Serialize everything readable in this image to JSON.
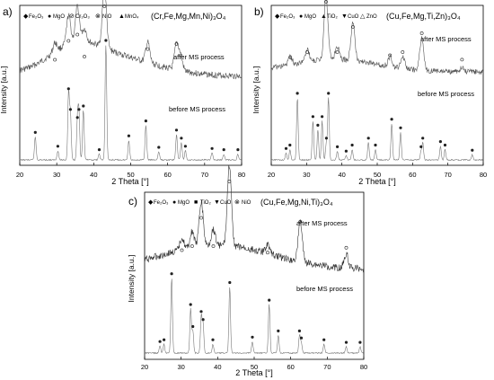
{
  "panels": [
    {
      "label": "a)",
      "compound": "(Cr,Fe,Mg,Mn,Ni)₃O₄",
      "legend": [
        {
          "symbol": "diamond",
          "text": "Fe₂O₃"
        },
        {
          "symbol": "circle",
          "text": "MgO"
        },
        {
          "symbol": "circle-slash",
          "text": "Cr₂O₃"
        },
        {
          "symbol": "circle-x",
          "text": "NiO"
        },
        {
          "symbol": "triangle",
          "text": "MnO₄"
        }
      ],
      "after_label": "after MS process",
      "before_label": "before MS process",
      "xlabel": "2 Theta [°]",
      "ylabel": "Intensity [a.u.]",
      "ticks": [
        "20",
        "30",
        "40",
        "50",
        "60",
        "70",
        "80"
      ]
    },
    {
      "label": "b)",
      "compound": "(Cu,Fe,Mg,Ti,Zn)₃O₄",
      "legend": [
        {
          "symbol": "diamond",
          "text": "Fe₂O₃"
        },
        {
          "symbol": "circle",
          "text": "MgO"
        },
        {
          "symbol": "triangle",
          "text": "TiO₂"
        },
        {
          "symbol": "tri-down",
          "text": "CuO"
        },
        {
          "symbol": "tri-outline",
          "text": "ZnO"
        }
      ],
      "after_label": "after MS process",
      "before_label": "before MS process",
      "xlabel": "2 Theta [°]",
      "ylabel": "Intensity [a.u.]",
      "ticks": [
        "20",
        "30",
        "40",
        "50",
        "60",
        "70",
        "80"
      ]
    },
    {
      "label": "c)",
      "compound": "(Cu,Fe,Mg,Ni,Ti)₃O₄",
      "legend": [
        {
          "symbol": "diamond",
          "text": "Fe₂O₃"
        },
        {
          "symbol": "circle",
          "text": "MgO"
        },
        {
          "symbol": "square",
          "text": "TiO₂"
        },
        {
          "symbol": "tri-down",
          "text": "CuO"
        },
        {
          "symbol": "circle-x",
          "text": "NiO"
        }
      ],
      "after_label": "after MS process",
      "before_label": "before MS process",
      "xlabel": "2 Theta [°]",
      "ylabel": "Intensity [a.u.]",
      "ticks": [
        "20",
        "30",
        "40",
        "50",
        "60",
        "70",
        "80"
      ]
    }
  ],
  "chart_data": [
    {
      "type": "line",
      "title": "(Cr,Fe,Mg,Mn,Ni)₃O₄",
      "xlabel": "2 Theta [°]",
      "ylabel": "Intensity [a.u.]",
      "xlim": [
        20,
        80
      ],
      "series": [
        {
          "name": "after MS process",
          "peaks": [
            [
              29.5,
              0.15
            ],
            [
              33.2,
              0.45
            ],
            [
              35.6,
              0.55
            ],
            [
              37.5,
              0.2
            ],
            [
              42.9,
              1.0
            ],
            [
              54.6,
              0.32
            ],
            [
              62.4,
              0.4
            ],
            [
              63.5,
              0.22
            ]
          ]
        },
        {
          "name": "before MS process",
          "peaks": [
            [
              24.2,
              0.2
            ],
            [
              30.3,
              0.08
            ],
            [
              33.2,
              0.58
            ],
            [
              33.7,
              0.4
            ],
            [
              35.6,
              0.33
            ],
            [
              36.0,
              0.4
            ],
            [
              37.2,
              0.43
            ],
            [
              41.5,
              0.05
            ],
            [
              43.3,
              1.0
            ],
            [
              49.5,
              0.17
            ],
            [
              54.1,
              0.3
            ],
            [
              57.6,
              0.07
            ],
            [
              62.4,
              0.22
            ],
            [
              63.7,
              0.15
            ],
            [
              64.8,
              0.08
            ],
            [
              72.0,
              0.06
            ],
            [
              75.2,
              0.05
            ],
            [
              79.0,
              0.05
            ]
          ]
        }
      ]
    },
    {
      "type": "line",
      "title": "(Cu,Fe,Mg,Ti,Zn)₃O₄",
      "xlabel": "2 Theta [°]",
      "ylabel": "Intensity [a.u.]",
      "xlim": [
        20,
        80
      ],
      "series": [
        {
          "name": "after MS process",
          "peaks": [
            [
              25.4,
              0.12
            ],
            [
              30.2,
              0.2
            ],
            [
              35.5,
              1.0
            ],
            [
              38.7,
              0.2
            ],
            [
              43.1,
              0.6
            ],
            [
              53.6,
              0.15
            ],
            [
              57.2,
              0.2
            ],
            [
              62.6,
              0.5
            ],
            [
              74.0,
              0.08
            ]
          ]
        },
        {
          "name": "before MS process",
          "peaks": [
            [
              24.2,
              0.08
            ],
            [
              25.3,
              0.12
            ],
            [
              27.4,
              0.72
            ],
            [
              31.8,
              0.45
            ],
            [
              33.2,
              0.35
            ],
            [
              34.4,
              0.45
            ],
            [
              35.6,
              0.2
            ],
            [
              36.2,
              0.72
            ],
            [
              38.7,
              0.1
            ],
            [
              41.2,
              0.05
            ],
            [
              42.9,
              0.12
            ],
            [
              47.5,
              0.2
            ],
            [
              49.5,
              0.12
            ],
            [
              54.1,
              0.42
            ],
            [
              56.6,
              0.32
            ],
            [
              62.4,
              0.1
            ],
            [
              62.9,
              0.2
            ],
            [
              67.9,
              0.16
            ],
            [
              69.2,
              0.12
            ],
            [
              76.9,
              0.06
            ]
          ]
        }
      ]
    },
    {
      "type": "line",
      "title": "(Cu,Fe,Mg,Ni,Ti)₃O₄",
      "xlabel": "2 Theta [°]",
      "ylabel": "Intensity [a.u.]",
      "xlim": [
        20,
        80
      ],
      "series": [
        {
          "name": "after MS process",
          "peaks": [
            [
              30.2,
              0.15
            ],
            [
              33.0,
              0.2
            ],
            [
              35.5,
              0.55
            ],
            [
              38.8,
              0.2
            ],
            [
              43.2,
              1.0
            ],
            [
              53.7,
              0.12
            ],
            [
              62.6,
              0.5
            ],
            [
              75.2,
              0.18
            ]
          ]
        },
        {
          "name": "before MS process",
          "peaks": [
            [
              24.2,
              0.08
            ],
            [
              25.3,
              0.1
            ],
            [
              27.4,
              0.85
            ],
            [
              32.6,
              0.5
            ],
            [
              33.2,
              0.25
            ],
            [
              35.5,
              0.42
            ],
            [
              36.0,
              0.33
            ],
            [
              38.7,
              0.1
            ],
            [
              43.3,
              0.75
            ],
            [
              49.5,
              0.13
            ],
            [
              54.1,
              0.55
            ],
            [
              56.6,
              0.2
            ],
            [
              62.4,
              0.2
            ],
            [
              62.9,
              0.12
            ],
            [
              69.1,
              0.1
            ],
            [
              75.2,
              0.07
            ],
            [
              79.0,
              0.07
            ]
          ]
        }
      ]
    }
  ]
}
